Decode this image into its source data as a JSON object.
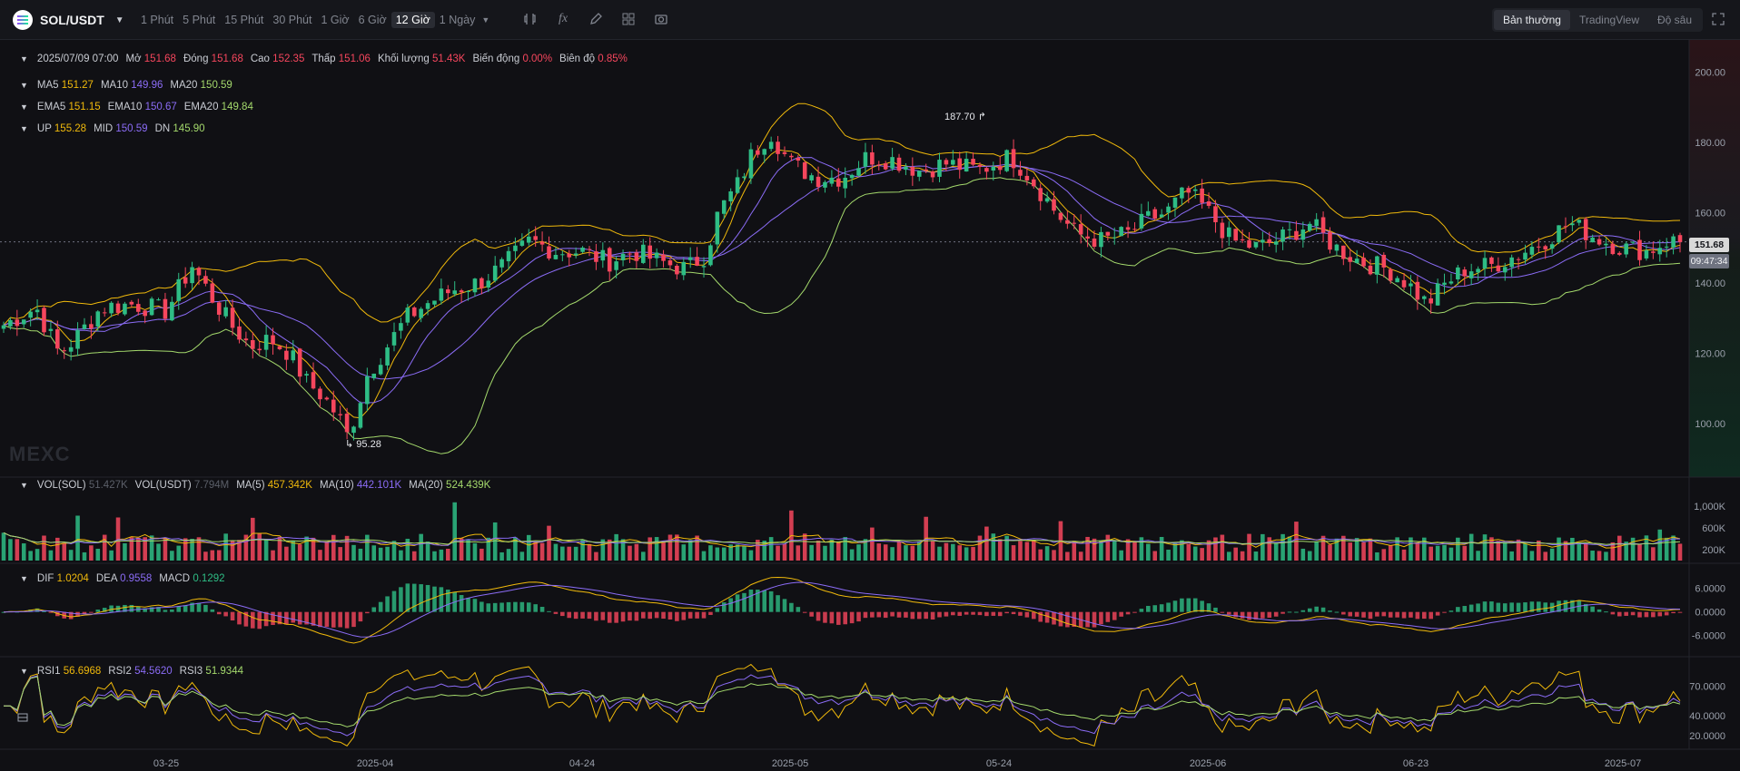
{
  "pair": {
    "symbol": "SOL/USDT"
  },
  "intervals": [
    {
      "label": "1 Phút",
      "active": false
    },
    {
      "label": "5 Phút",
      "active": false
    },
    {
      "label": "15 Phút",
      "active": false
    },
    {
      "label": "30 Phút",
      "active": false
    },
    {
      "label": "1 Giờ",
      "active": false
    },
    {
      "label": "6 Giờ",
      "active": false
    },
    {
      "label": "12 Giờ",
      "active": true
    },
    {
      "label": "1 Ngày",
      "active": false
    }
  ],
  "toolbar_icons": [
    "indicators-icon",
    "formula-icon",
    "pencil-icon",
    "layout-icon",
    "camera-icon"
  ],
  "views": [
    {
      "label": "Bản thường",
      "active": true
    },
    {
      "label": "TradingView",
      "active": false
    },
    {
      "label": "Độ sâu",
      "active": false
    }
  ],
  "ohlc": {
    "datetime": "2025/07/09 07:00",
    "open_label": "Mở",
    "open": "151.68",
    "close_label": "Đóng",
    "close": "151.68",
    "high_label": "Cao",
    "high": "152.35",
    "low_label": "Thấp",
    "low": "151.06",
    "volume_label": "Khối lượng",
    "volume": "51.43K",
    "change_label": "Biến động",
    "change": "0.00%",
    "amplitude_label": "Biên độ",
    "amplitude": "0.85%"
  },
  "ma": {
    "ma5_label": "MA5",
    "ma5": "151.27",
    "ma10_label": "MA10",
    "ma10": "149.96",
    "ma20_label": "MA20",
    "ma20": "150.59"
  },
  "ema": {
    "ema5_label": "EMA5",
    "ema5": "151.15",
    "ema10_label": "EMA10",
    "ema10": "150.67",
    "ema20_label": "EMA20",
    "ema20": "149.84"
  },
  "boll": {
    "up_label": "UP",
    "up": "155.28",
    "mid_label": "MID",
    "mid": "150.59",
    "dn_label": "DN",
    "dn": "145.90"
  },
  "vol": {
    "sol_label": "VOL(SOL)",
    "sol": "51.427K",
    "usdt_label": "VOL(USDT)",
    "usdt": "7.794M",
    "ma5_label": "MA(5)",
    "ma5": "457.342K",
    "ma10_label": "MA(10)",
    "ma10": "442.101K",
    "ma20_label": "MA(20)",
    "ma20": "524.439K"
  },
  "macd": {
    "dif_label": "DIF",
    "dif": "1.0204",
    "dea_label": "DEA",
    "dea": "0.9558",
    "macd_label": "MACD",
    "macd": "0.1292"
  },
  "rsi": {
    "rsi1_label": "RSI1",
    "rsi1": "56.6968",
    "rsi2_label": "RSI2",
    "rsi2": "54.5620",
    "rsi3_label": "RSI3",
    "rsi3": "51.9344"
  },
  "current_price": "151.68",
  "countdown": "09:47:34",
  "price_high_marker": "187.70",
  "price_low_marker": "95.28",
  "watermark": "MEXC",
  "colors": {
    "up": "#2ebd85",
    "down": "#f6465d",
    "ma5": "#f0b90b",
    "ma10": "#8b6cf6",
    "ma20": "#a4d96c"
  },
  "chart_data": [
    {
      "type": "candlestick",
      "title": "SOL/USDT 12 Giờ",
      "ylim": [
        85,
        205
      ],
      "y_ticks": [
        "200.00",
        "180.00",
        "160.00",
        "140.00",
        "120.00",
        "100.00"
      ],
      "x_ticks": [
        "03-25",
        "2025-04",
        "04-24",
        "2025-05",
        "05-24",
        "2025-06",
        "06-23",
        "2025-07"
      ],
      "close_path": [
        [
          0,
          128
        ],
        [
          10,
          133
        ],
        [
          17,
          120
        ],
        [
          22,
          124
        ],
        [
          30,
          133
        ],
        [
          40,
          134
        ],
        [
          50,
          132
        ],
        [
          58,
          145
        ],
        [
          64,
          136
        ],
        [
          70,
          128
        ],
        [
          76,
          122
        ],
        [
          82,
          124
        ],
        [
          88,
          120
        ],
        [
          93,
          112
        ],
        [
          98,
          108
        ],
        [
          103,
          102
        ],
        [
          106,
          96
        ],
        [
          112,
          114
        ],
        [
          118,
          122
        ],
        [
          124,
          130
        ],
        [
          130,
          134
        ],
        [
          138,
          138
        ],
        [
          146,
          140
        ],
        [
          154,
          145
        ],
        [
          162,
          152
        ],
        [
          170,
          149
        ],
        [
          178,
          149
        ],
        [
          186,
          146
        ],
        [
          194,
          149
        ],
        [
          202,
          146
        ],
        [
          210,
          144
        ],
        [
          216,
          148
        ],
        [
          220,
          160
        ],
        [
          226,
          168
        ],
        [
          230,
          176
        ],
        [
          236,
          183
        ],
        [
          242,
          174
        ],
        [
          250,
          170
        ],
        [
          258,
          170
        ],
        [
          266,
          176
        ],
        [
          274,
          175
        ],
        [
          282,
          172
        ],
        [
          290,
          174
        ],
        [
          300,
          172
        ],
        [
          310,
          176
        ],
        [
          316,
          170
        ],
        [
          324,
          160
        ],
        [
          330,
          154
        ],
        [
          338,
          152
        ],
        [
          346,
          154
        ],
        [
          352,
          158
        ],
        [
          358,
          160
        ],
        [
          364,
          166
        ],
        [
          370,
          161
        ],
        [
          378,
          152
        ],
        [
          386,
          150
        ],
        [
          394,
          153
        ],
        [
          402,
          157
        ],
        [
          410,
          150
        ],
        [
          418,
          146
        ],
        [
          426,
          144
        ],
        [
          432,
          140
        ],
        [
          438,
          134
        ],
        [
          444,
          140
        ],
        [
          450,
          144
        ],
        [
          458,
          145
        ],
        [
          466,
          148
        ],
        [
          474,
          152
        ],
        [
          482,
          157
        ],
        [
          490,
          153
        ],
        [
          498,
          150
        ],
        [
          506,
          149
        ],
        [
          512,
          152
        ],
        [
          516,
          151.68
        ]
      ],
      "high_marker": "187.70",
      "low_marker": "95.28"
    },
    {
      "type": "bar",
      "title": "VOL(SOL)",
      "y_ticks": [
        "1,000K",
        "600K",
        "200K"
      ],
      "ylim": [
        0,
        1300
      ]
    },
    {
      "type": "bar",
      "title": "MACD",
      "y_ticks": [
        "6.0000",
        "0.0000",
        "-6.0000"
      ],
      "ylim": [
        -10,
        8
      ]
    },
    {
      "type": "line",
      "title": "RSI",
      "y_ticks": [
        "70.0000",
        "40.0000",
        "20.0000"
      ],
      "ylim": [
        10,
        85
      ]
    }
  ]
}
